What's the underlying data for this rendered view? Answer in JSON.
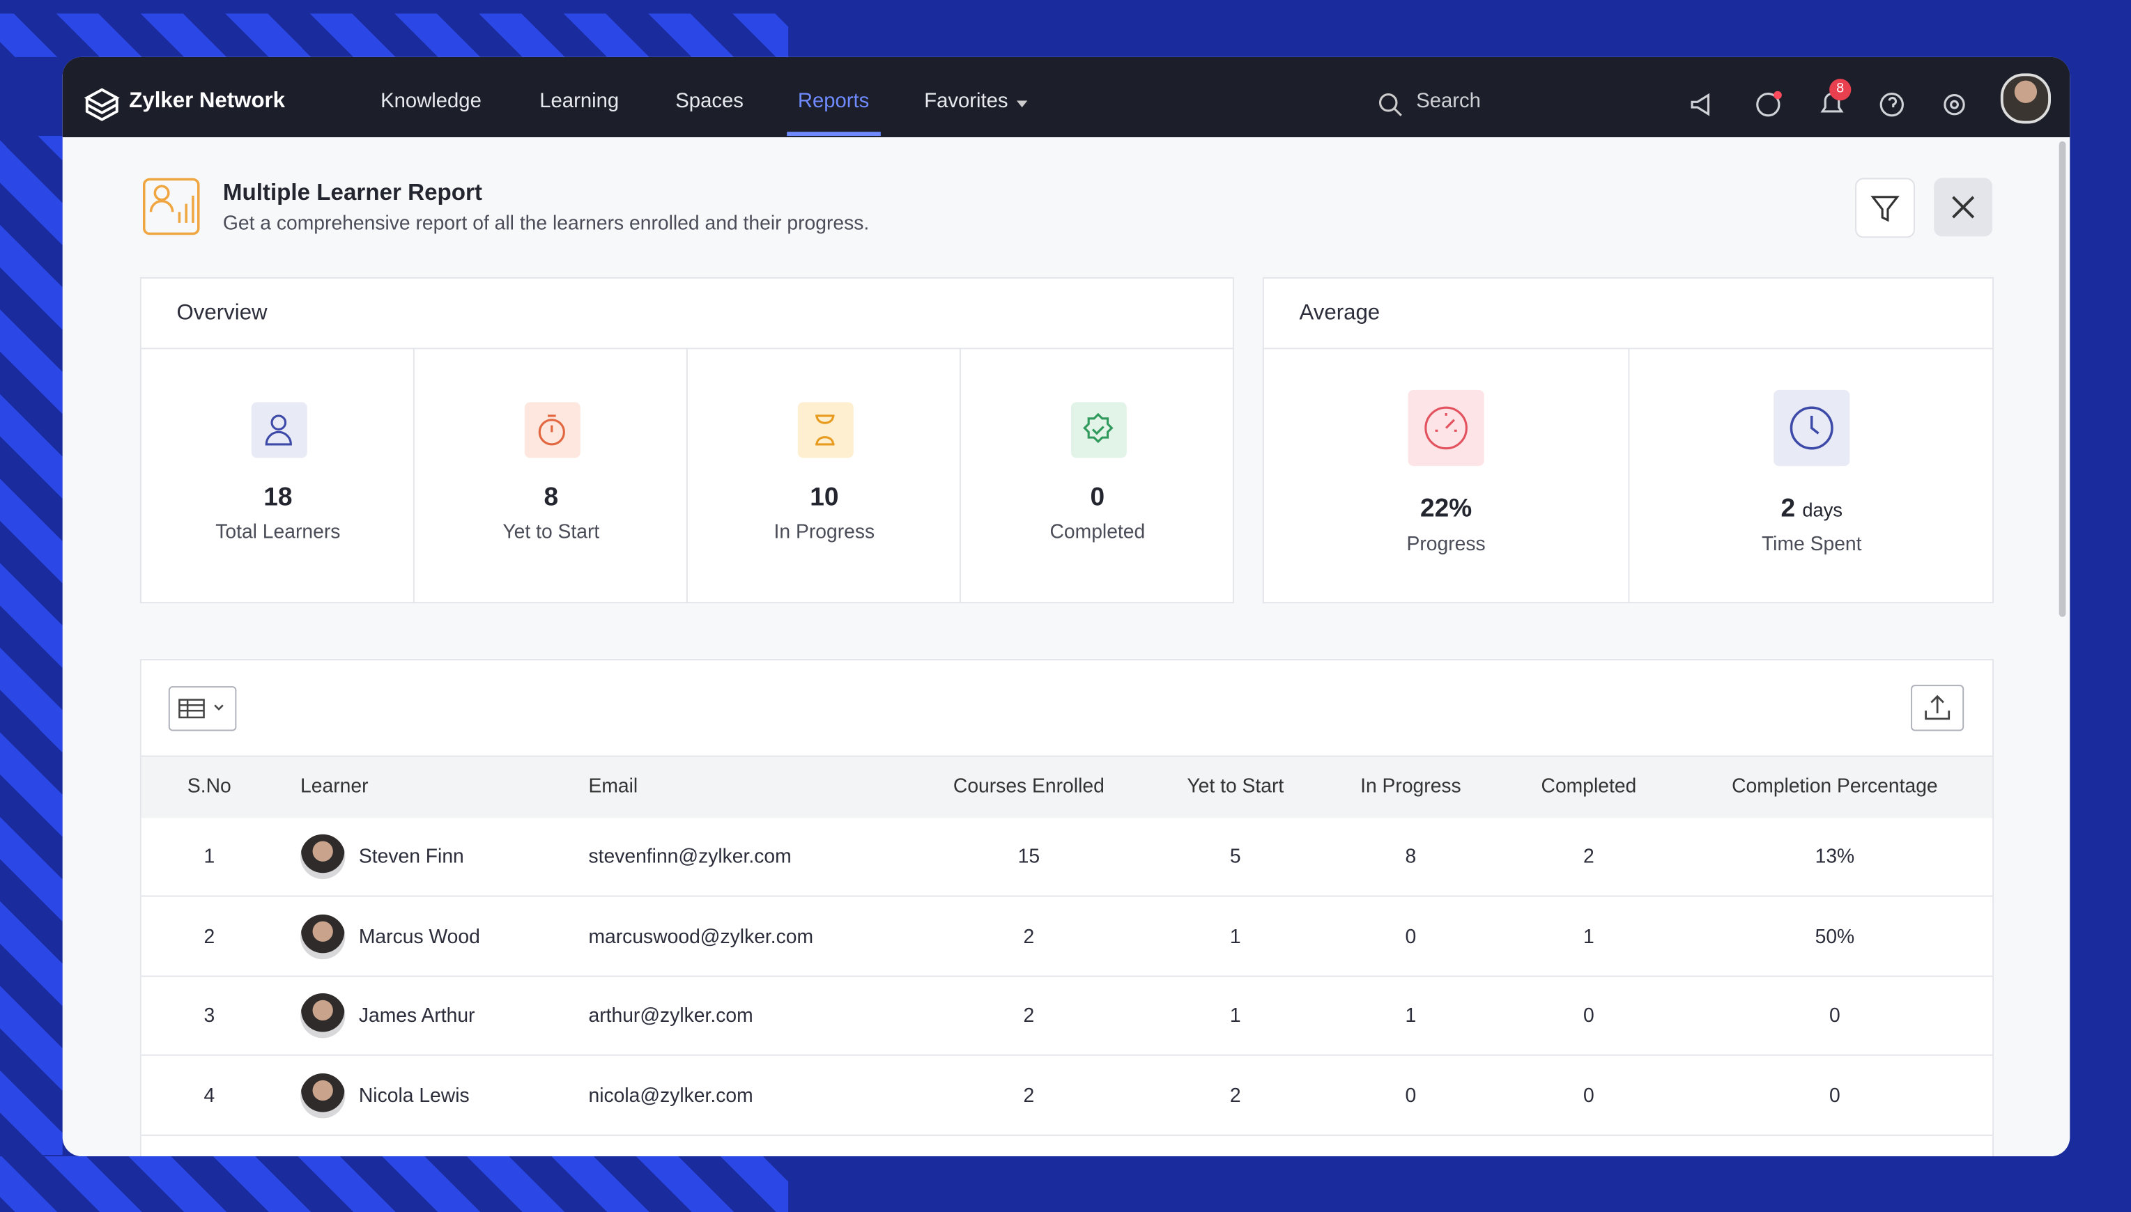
{
  "nav": {
    "brand": "Zylker Network",
    "items": [
      "Knowledge",
      "Learning",
      "Spaces",
      "Reports",
      "Favorites"
    ],
    "search": "Search",
    "badge": "8"
  },
  "header": {
    "title": "Multiple Learner Report",
    "subtitle": "Get a comprehensive report of all the learners enrolled and their progress."
  },
  "overview": {
    "title": "Overview",
    "stats": [
      {
        "value": "18",
        "label": "Total Learners"
      },
      {
        "value": "8",
        "label": "Yet to Start"
      },
      {
        "value": "10",
        "label": "In Progress"
      },
      {
        "value": "0",
        "label": "Completed"
      }
    ]
  },
  "average": {
    "title": "Average",
    "stats": [
      {
        "value": "22%",
        "label": "Progress"
      },
      {
        "value": "2",
        "unit": "days",
        "label": "Time Spent"
      }
    ]
  },
  "table": {
    "columns": [
      "S.No",
      "Learner",
      "Email",
      "Courses Enrolled",
      "Yet to Start",
      "In Progress",
      "Completed",
      "Completion Percentage"
    ],
    "rows": [
      [
        "1",
        "Steven Finn",
        "stevenfinn@zylker.com",
        "15",
        "5",
        "8",
        "2",
        "13%"
      ],
      [
        "2",
        "Marcus Wood",
        "marcuswood@zylker.com",
        "2",
        "1",
        "0",
        "1",
        "50%"
      ],
      [
        "3",
        "James Arthur",
        "arthur@zylker.com",
        "2",
        "1",
        "1",
        "0",
        "0"
      ],
      [
        "4",
        "Nicola Lewis",
        "nicola@zylker.com",
        "2",
        "2",
        "0",
        "0",
        "0"
      ]
    ]
  }
}
